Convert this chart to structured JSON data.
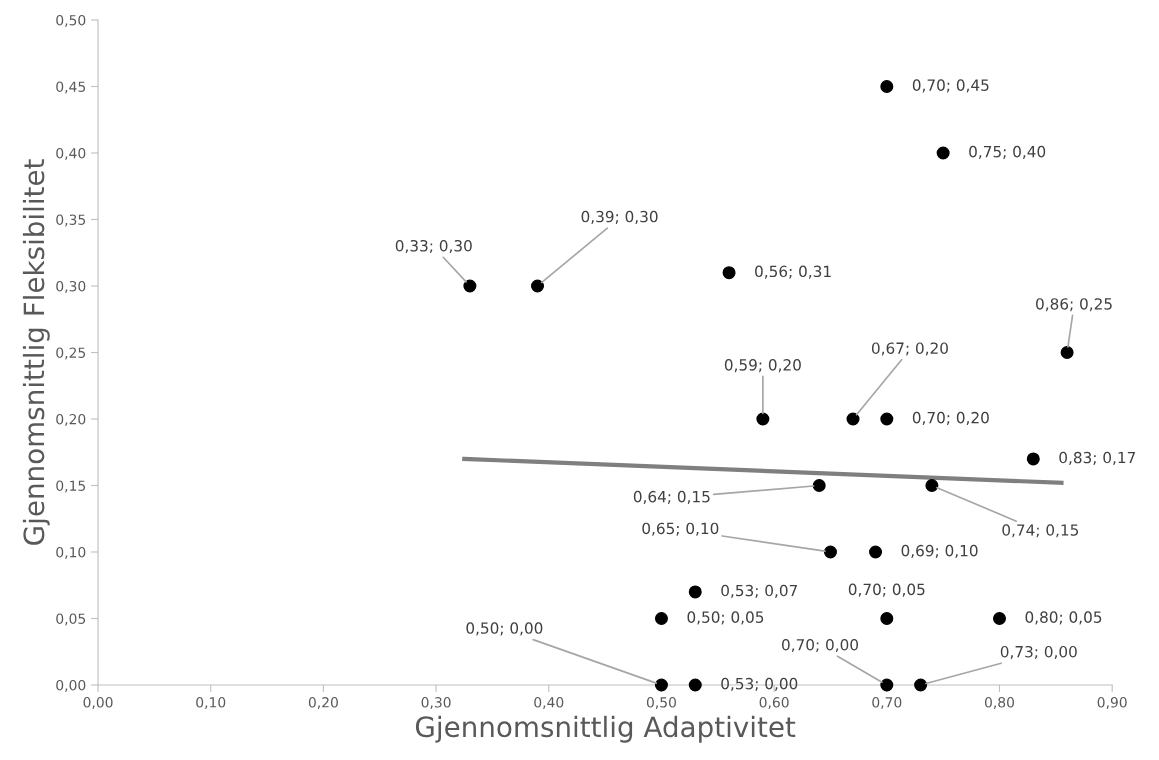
{
  "chart_data": {
    "type": "scatter",
    "xlabel": "Gjennomsnittlig Adaptivitet",
    "ylabel": "Gjennomsnittlig Fleksibilitet",
    "xlim": [
      0,
      0.9
    ],
    "ylim": [
      0,
      0.5
    ],
    "xticks": [
      {
        "value": 0,
        "label": "0,00"
      },
      {
        "value": 0.1,
        "label": "0,10"
      },
      {
        "value": 0.2,
        "label": "0,20"
      },
      {
        "value": 0.3,
        "label": "0,30"
      },
      {
        "value": 0.4,
        "label": "0,40"
      },
      {
        "value": 0.5,
        "label": "0,50"
      },
      {
        "value": 0.6,
        "label": "0,60"
      },
      {
        "value": 0.7,
        "label": "0,70"
      },
      {
        "value": 0.8,
        "label": "0,80"
      },
      {
        "value": 0.9,
        "label": "0,90"
      }
    ],
    "yticks": [
      {
        "value": 0,
        "label": "0,00"
      },
      {
        "value": 0.05,
        "label": "0,05"
      },
      {
        "value": 0.1,
        "label": "0,10"
      },
      {
        "value": 0.15,
        "label": "0,15"
      },
      {
        "value": 0.2,
        "label": "0,20"
      },
      {
        "value": 0.25,
        "label": "0,25"
      },
      {
        "value": 0.3,
        "label": "0,30"
      },
      {
        "value": 0.35,
        "label": "0,35"
      },
      {
        "value": 0.4,
        "label": "0,40"
      },
      {
        "value": 0.45,
        "label": "0,45"
      },
      {
        "value": 0.5,
        "label": "0,50"
      }
    ],
    "grid": false,
    "legend": false,
    "series": [
      {
        "marker": "circle",
        "color": "#000000",
        "x": [
          0.7,
          0.75,
          0.33,
          0.39,
          0.56,
          0.86,
          0.59,
          0.67,
          0.7,
          0.83,
          0.64,
          0.74,
          0.65,
          0.69,
          0.53,
          0.5,
          0.7,
          0.8,
          0.5,
          0.53,
          0.7,
          0.73
        ],
        "values": [
          0.45,
          0.4,
          0.3,
          0.3,
          0.31,
          0.25,
          0.2,
          0.2,
          0.2,
          0.17,
          0.15,
          0.15,
          0.1,
          0.1,
          0.07,
          0.05,
          0.05,
          0.05,
          0.0,
          0.0,
          0.0,
          0.0
        ],
        "value_labels": [
          "0,70; 0,45",
          "0,75; 0,40",
          "0,33; 0,30",
          "0,39; 0,30",
          "0,56; 0,31",
          "0,86; 0,25",
          "0,59; 0,20",
          "0,67; 0,20",
          "0,70; 0,20",
          "0,83; 0,17",
          "0,64; 0,15",
          "0,74; 0,15",
          "0,65; 0,10",
          "0,69; 0,10",
          "0,53; 0,07",
          "0,50; 0,05",
          "0,70; 0,05",
          "0,80; 0,05",
          "0,50; 0,00",
          "0,53; 0,00",
          "0,70; 0,00",
          "0,73; 0,00"
        ]
      },
      {
        "type": "line",
        "color": "#7f7f7f",
        "x": [
          0.325,
          0.855
        ],
        "values": [
          0.17,
          0.152
        ]
      }
    ]
  }
}
